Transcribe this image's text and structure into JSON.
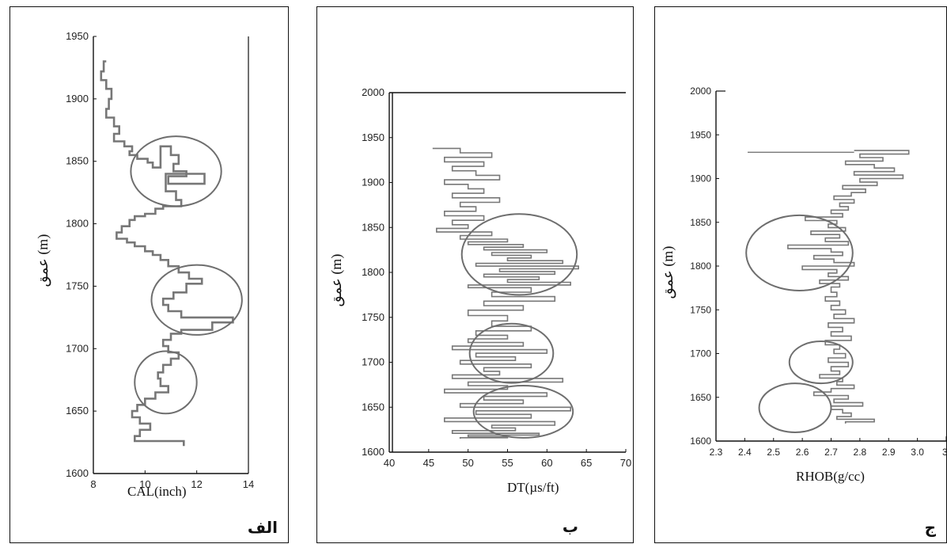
{
  "chart_data": [
    {
      "type": "line",
      "panel_tag": "الف",
      "xlabel": "CAL(inch)",
      "ylabel": "(m) عمق",
      "xlim": [
        8,
        14
      ],
      "ylim": [
        1600,
        1950
      ],
      "x_ticks": [
        "8",
        "10",
        "12",
        "14"
      ],
      "y_ticks": [
        "1600",
        "1650",
        "1700",
        "1750",
        "1800",
        "1850",
        "1900",
        "1950"
      ],
      "series": [
        {
          "x": [
            8.5,
            8.4,
            8.3,
            8.5,
            8.7,
            8.6,
            8.5,
            8.8,
            9.0,
            8.8,
            9.2,
            9.5,
            9.4,
            9.7,
            10.1,
            10.3,
            10.6,
            11.0,
            11.3,
            11.1,
            11.6,
            10.9,
            12.3,
            10.8,
            11.2,
            11.4,
            10.7,
            10.4,
            10.0,
            9.6,
            9.4,
            9.1,
            8.9,
            9.3,
            9.6,
            10.0,
            10.3,
            10.6,
            10.9,
            11.3,
            11.7,
            12.2,
            11.6,
            11.1,
            10.7,
            10.9,
            11.4,
            13.4,
            12.6,
            11.4,
            11.0,
            10.7,
            10.9,
            11.3,
            11.0,
            10.7,
            10.5,
            10.6,
            10.9,
            10.4,
            10.0,
            9.7,
            9.5,
            9.8,
            10.2,
            9.8,
            9.6,
            11.5
          ],
          "y": [
            1930,
            1922,
            1915,
            1908,
            1900,
            1892,
            1885,
            1878,
            1872,
            1866,
            1862,
            1858,
            1855,
            1852,
            1849,
            1845,
            1862,
            1855,
            1848,
            1842,
            1838,
            1832,
            1840,
            1826,
            1819,
            1814,
            1812,
            1808,
            1806,
            1803,
            1798,
            1793,
            1788,
            1785,
            1782,
            1778,
            1775,
            1771,
            1766,
            1761,
            1756,
            1752,
            1745,
            1740,
            1735,
            1730,
            1725,
            1721,
            1715,
            1712,
            1707,
            1702,
            1697,
            1692,
            1687,
            1681,
            1676,
            1670,
            1665,
            1660,
            1655,
            1650,
            1645,
            1640,
            1635,
            1630,
            1626,
            1622
          ]
        }
      ],
      "annotations": [
        {
          "type": "ellipse",
          "cx": 11.2,
          "cy": 1842,
          "rx": 1.75,
          "ry": 28
        },
        {
          "type": "ellipse",
          "cx": 12.0,
          "cy": 1739,
          "rx": 1.75,
          "ry": 28
        },
        {
          "type": "ellipse",
          "cx": 10.8,
          "cy": 1673,
          "rx": 1.2,
          "ry": 25
        }
      ]
    },
    {
      "type": "line",
      "panel_tag": "ب",
      "xlabel": "DT(µs/ft)",
      "ylabel": "(m) عمق",
      "xlim": [
        40,
        70
      ],
      "ylim": [
        1600,
        2000
      ],
      "x_ticks": [
        "40",
        "45",
        "50",
        "55",
        "60",
        "65",
        "70"
      ],
      "y_ticks": [
        "1600",
        "1650",
        "1700",
        "1750",
        "1800",
        "1850",
        "1900",
        "1950",
        "2000"
      ],
      "series": [
        {
          "x": [
            45.5,
            49,
            53,
            47,
            52,
            48,
            51,
            54,
            47,
            50,
            52,
            48,
            54,
            49,
            51,
            47,
            52,
            48,
            50,
            46,
            53,
            49,
            55,
            50,
            57,
            52,
            60,
            53,
            58,
            55,
            62,
            51,
            64,
            54,
            61,
            52,
            59,
            55,
            63,
            50,
            58,
            53,
            61,
            52,
            57,
            50,
            55,
            53,
            58,
            51,
            55,
            50,
            57,
            48,
            60,
            51,
            56,
            49,
            58,
            52,
            54,
            48,
            62,
            50,
            55,
            47,
            60,
            52,
            57,
            49,
            63,
            51,
            58,
            47,
            61,
            53,
            56,
            48,
            59,
            50,
            55,
            49
          ],
          "y": [
            1938,
            1933,
            1928,
            1923,
            1918,
            1913,
            1908,
            1903,
            1898,
            1893,
            1888,
            1883,
            1878,
            1873,
            1868,
            1863,
            1858,
            1853,
            1849,
            1845,
            1841,
            1837,
            1834,
            1831,
            1828,
            1825,
            1822,
            1819,
            1816,
            1813,
            1810,
            1807,
            1804,
            1801,
            1798,
            1795,
            1792,
            1789,
            1786,
            1783,
            1778,
            1773,
            1768,
            1763,
            1758,
            1752,
            1746,
            1740,
            1735,
            1730,
            1726,
            1722,
            1718,
            1714,
            1710,
            1706,
            1702,
            1698,
            1694,
            1690,
            1686,
            1682,
            1678,
            1674,
            1670,
            1666,
            1662,
            1658,
            1654,
            1650,
            1646,
            1642,
            1638,
            1634,
            1630,
            1627,
            1624,
            1621,
            1619,
            1617,
            1616,
            1615
          ]
        }
      ],
      "annotations": [
        {
          "type": "ellipse",
          "cx": 56.5,
          "cy": 1820,
          "rx": 7.3,
          "ry": 45
        },
        {
          "type": "ellipse",
          "cx": 55.5,
          "cy": 1710,
          "rx": 5.3,
          "ry": 33
        },
        {
          "type": "ellipse",
          "cx": 57.0,
          "cy": 1645,
          "rx": 6.3,
          "ry": 29
        }
      ]
    },
    {
      "type": "line",
      "panel_tag": "ج",
      "xlabel": "RHOB(g/cc)",
      "ylabel": "(m) عمق",
      "xlim": [
        2.3,
        3.1
      ],
      "ylim": [
        1600,
        2000
      ],
      "x_ticks": [
        "2.3",
        "2.4",
        "2.5",
        "2.6",
        "2.7",
        "2.8",
        "2.9",
        "3.0",
        "3."
      ],
      "y_ticks": [
        "1600",
        "1650",
        "1700",
        "1750",
        "1800",
        "1850",
        "1900",
        "1950",
        "2000"
      ],
      "series": [
        {
          "x": [
            2.78,
            2.97,
            2.8,
            2.88,
            2.75,
            2.85,
            2.92,
            2.78,
            2.95,
            2.8,
            2.86,
            2.74,
            2.82,
            2.77,
            2.71,
            2.78,
            2.73,
            2.76,
            2.7,
            2.74,
            2.61,
            2.72,
            2.69,
            2.75,
            2.63,
            2.73,
            2.68,
            2.76,
            2.55,
            2.7,
            2.74,
            2.64,
            2.71,
            2.78,
            2.6,
            2.72,
            2.69,
            2.76,
            2.66,
            2.73,
            2.7,
            2.72,
            2.68,
            2.73,
            2.7,
            2.75,
            2.71,
            2.78,
            2.69,
            2.74,
            2.7,
            2.77,
            2.68,
            2.73,
            2.71,
            2.75,
            2.69,
            2.76,
            2.7,
            2.73,
            2.66,
            2.74,
            2.72,
            2.78,
            2.7,
            2.64,
            2.76,
            2.71,
            2.81,
            2.7,
            2.74,
            2.77,
            2.72,
            2.85,
            2.75
          ],
          "y": [
            1932,
            1928,
            1924,
            1920,
            1916,
            1912,
            1908,
            1904,
            1900,
            1896,
            1892,
            1888,
            1884,
            1880,
            1876,
            1872,
            1868,
            1864,
            1860,
            1856,
            1852,
            1848,
            1844,
            1840,
            1836,
            1832,
            1828,
            1824,
            1820,
            1816,
            1812,
            1808,
            1804,
            1800,
            1796,
            1792,
            1788,
            1784,
            1780,
            1776,
            1770,
            1765,
            1760,
            1755,
            1750,
            1745,
            1740,
            1735,
            1730,
            1725,
            1720,
            1715,
            1710,
            1705,
            1700,
            1695,
            1690,
            1685,
            1680,
            1676,
            1672,
            1668,
            1664,
            1660,
            1656,
            1652,
            1648,
            1644,
            1640,
            1636,
            1632,
            1628,
            1625,
            1622,
            1620
          ]
        }
      ],
      "annotations": [
        {
          "type": "ellipse",
          "cx": 2.59,
          "cy": 1815,
          "rx": 0.185,
          "ry": 43
        },
        {
          "type": "ellipse",
          "cx": 2.665,
          "cy": 1690,
          "rx": 0.11,
          "ry": 24
        },
        {
          "type": "ellipse",
          "cx": 2.575,
          "cy": 1638,
          "rx": 0.125,
          "ry": 28
        }
      ]
    }
  ]
}
